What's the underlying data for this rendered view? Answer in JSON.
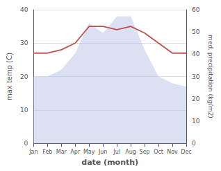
{
  "chart_data": {
    "type": "line",
    "xlabel": "date (month)",
    "ylabel": "max temp (C)",
    "y2label": "med. precipitation (kg/m2)",
    "categories": [
      "Jan",
      "Feb",
      "Mar",
      "Apr",
      "May",
      "Jun",
      "Jul",
      "Aug",
      "Sep",
      "Oct",
      "Nov",
      "Dec"
    ],
    "series": [
      {
        "type": "area",
        "color": "#b8c4e8",
        "values": [
          20,
          20,
          22,
          27,
          36,
          33,
          38,
          38,
          28,
          20,
          18,
          17
        ]
      },
      {
        "type": "line",
        "color": "#c0504d",
        "values": [
          27,
          27,
          28,
          30,
          35,
          35,
          34,
          35,
          33,
          30,
          27,
          27
        ]
      }
    ],
    "ylim": [
      0,
      40
    ],
    "yticks": [
      0,
      10,
      20,
      30,
      40
    ],
    "y2lim": [
      0,
      60
    ],
    "y2ticks": [
      0,
      10,
      20,
      30,
      40,
      50,
      60
    ],
    "grid": true
  }
}
